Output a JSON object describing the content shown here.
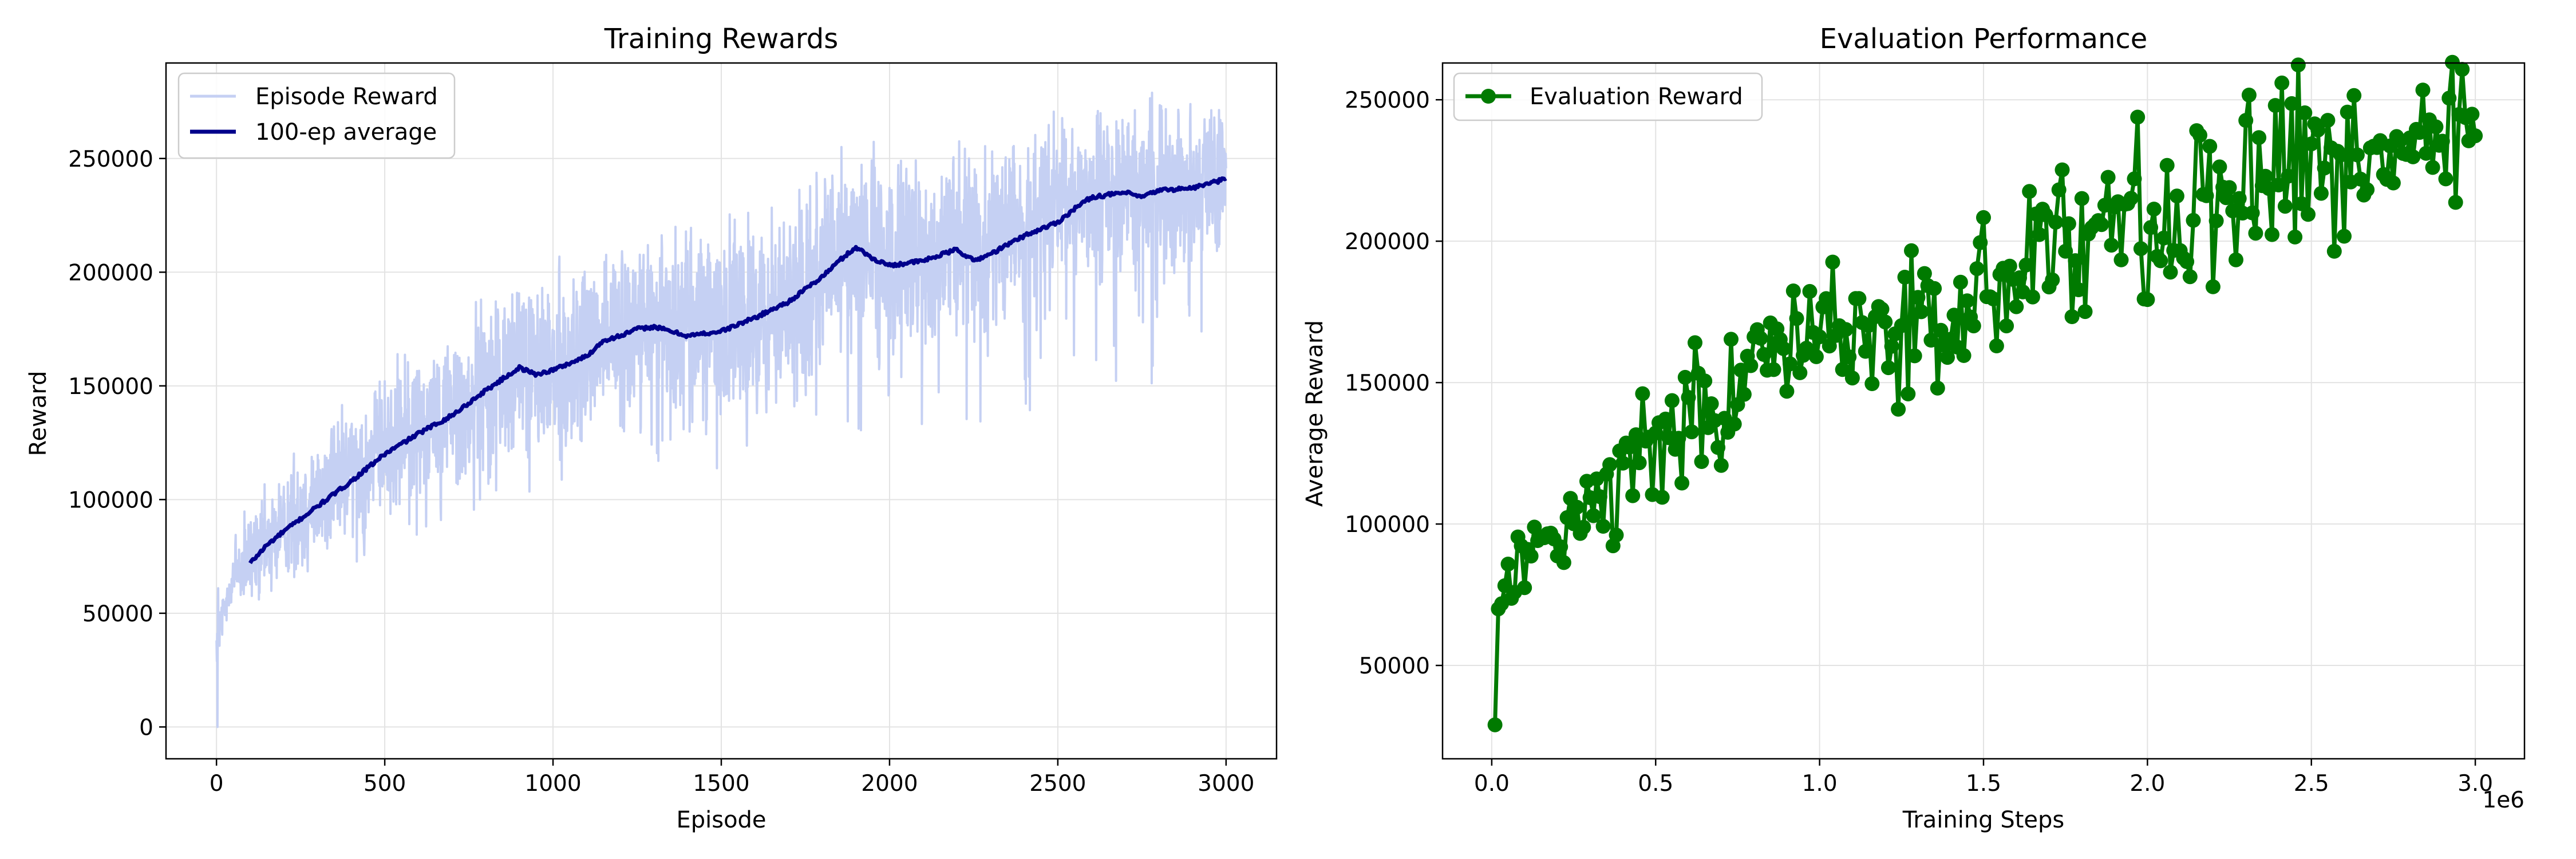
{
  "colors": {
    "episode_reward": "#c5d0f3",
    "avg_100": "#00008b",
    "eval_reward": "#007a00",
    "grid": "#e3e3e3"
  },
  "chart_data": [
    {
      "type": "line",
      "title": "Training Rewards",
      "xlabel": "Episode",
      "ylabel": "Reward",
      "xlim": [
        -150,
        3150
      ],
      "ylim": [
        -14000,
        292000
      ],
      "xticks": [
        0,
        500,
        1000,
        1500,
        2000,
        2500,
        3000
      ],
      "yticks": [
        0,
        50000,
        100000,
        150000,
        200000,
        250000
      ],
      "grid": true,
      "legend": "upper left",
      "series": [
        {
          "name": "Episode Reward",
          "style": "thin-line",
          "color": "#c5d0f3",
          "mean_anchors": [
            [
              0,
              35000
            ],
            [
              50,
              68000
            ],
            [
              100,
              72000
            ],
            [
              200,
              88000
            ],
            [
              400,
              113000
            ],
            [
              600,
              133000
            ],
            [
              800,
              150000
            ],
            [
              900,
              158000
            ],
            [
              1000,
              157000
            ],
            [
              1100,
              165000
            ],
            [
              1200,
              175000
            ],
            [
              1300,
              176000
            ],
            [
              1500,
              177000
            ],
            [
              1700,
              186000
            ],
            [
              1800,
              200000
            ],
            [
              1900,
              212000
            ],
            [
              2000,
              204000
            ],
            [
              2100,
              206000
            ],
            [
              2300,
              216000
            ],
            [
              2500,
              229000
            ],
            [
              2600,
              233000
            ],
            [
              2800,
              237000
            ],
            [
              3000,
              242000
            ]
          ],
          "spread_anchors": [
            [
              0,
              9000
            ],
            [
              100,
              16000
            ],
            [
              500,
              22000
            ],
            [
              1000,
              28000
            ],
            [
              1500,
              30000
            ],
            [
              2000,
              30000
            ],
            [
              3000,
              22000
            ]
          ]
        },
        {
          "name": "100-ep average",
          "style": "thick-line",
          "color": "#00008b",
          "points": [
            [
              100,
              72000
            ],
            [
              150,
              80000
            ],
            [
              200,
              86000
            ],
            [
              300,
              97000
            ],
            [
              400,
              108000
            ],
            [
              500,
              120000
            ],
            [
              600,
              129000
            ],
            [
              700,
              137000
            ],
            [
              800,
              148000
            ],
            [
              850,
              153000
            ],
            [
              900,
              158000
            ],
            [
              950,
              155000
            ],
            [
              1000,
              157000
            ],
            [
              1100,
              163000
            ],
            [
              1150,
              170000
            ],
            [
              1200,
              172000
            ],
            [
              1250,
              175000
            ],
            [
              1300,
              176000
            ],
            [
              1400,
              172000
            ],
            [
              1500,
              174000
            ],
            [
              1600,
              180000
            ],
            [
              1700,
              187000
            ],
            [
              1800,
              198000
            ],
            [
              1850,
              205000
            ],
            [
              1900,
              211000
            ],
            [
              1950,
              206000
            ],
            [
              2000,
              203000
            ],
            [
              2050,
              204000
            ],
            [
              2100,
              205000
            ],
            [
              2200,
              210000
            ],
            [
              2250,
              205000
            ],
            [
              2300,
              208000
            ],
            [
              2400,
              216000
            ],
            [
              2500,
              222000
            ],
            [
              2550,
              228000
            ],
            [
              2600,
              233000
            ],
            [
              2700,
              235000
            ],
            [
              2750,
              233000
            ],
            [
              2800,
              236000
            ],
            [
              2900,
              237000
            ],
            [
              3000,
              241000
            ]
          ]
        }
      ]
    },
    {
      "type": "line",
      "title": "Evaluation Performance",
      "xlabel": "Training Steps",
      "ylabel": "Average Reward",
      "x_offset_label": "1e6",
      "xlim": [
        -0.15,
        3.15
      ],
      "ylim": [
        17000,
        263000
      ],
      "xticks": [
        0.0,
        0.5,
        1.0,
        1.5,
        2.0,
        2.5,
        3.0
      ],
      "xtick_labels": [
        "0.0",
        "0.5",
        "1.0",
        "1.5",
        "2.0",
        "2.5",
        "3.0"
      ],
      "yticks": [
        50000,
        100000,
        150000,
        200000,
        250000
      ],
      "grid": true,
      "legend": "upper left",
      "series": [
        {
          "name": "Evaluation Reward",
          "style": "line-with-markers",
          "color": "#007a00",
          "mean_anchors": [
            [
              0.01,
              29000
            ],
            [
              0.02,
              70000
            ],
            [
              0.04,
              78000
            ],
            [
              0.1,
              88000
            ],
            [
              0.2,
              93000
            ],
            [
              0.3,
              103000
            ],
            [
              0.4,
              120000
            ],
            [
              0.5,
              128000
            ],
            [
              0.6,
              138000
            ],
            [
              0.7,
              145000
            ],
            [
              0.8,
              155000
            ],
            [
              0.9,
              160000
            ],
            [
              1.0,
              165000
            ],
            [
              1.1,
              166000
            ],
            [
              1.2,
              170000
            ],
            [
              1.3,
              175000
            ],
            [
              1.4,
              170000
            ],
            [
              1.5,
              180000
            ],
            [
              1.6,
              188000
            ],
            [
              1.7,
              196000
            ],
            [
              1.8,
              207000
            ],
            [
              1.9,
              210000
            ],
            [
              2.0,
              210000
            ],
            [
              2.1,
              213000
            ],
            [
              2.2,
              216000
            ],
            [
              2.3,
              220000
            ],
            [
              2.4,
              228000
            ],
            [
              2.5,
              234000
            ],
            [
              2.6,
              236000
            ],
            [
              2.7,
              233000
            ],
            [
              2.8,
              238000
            ],
            [
              2.9,
              236000
            ],
            [
              3.0,
              240000
            ]
          ],
          "spread_anchors": [
            [
              0.0,
              6000
            ],
            [
              0.5,
              13000
            ],
            [
              1.0,
              17000
            ],
            [
              1.5,
              18000
            ],
            [
              2.0,
              20000
            ],
            [
              2.5,
              18000
            ],
            [
              3.0,
              17000
            ]
          ]
        }
      ]
    }
  ]
}
